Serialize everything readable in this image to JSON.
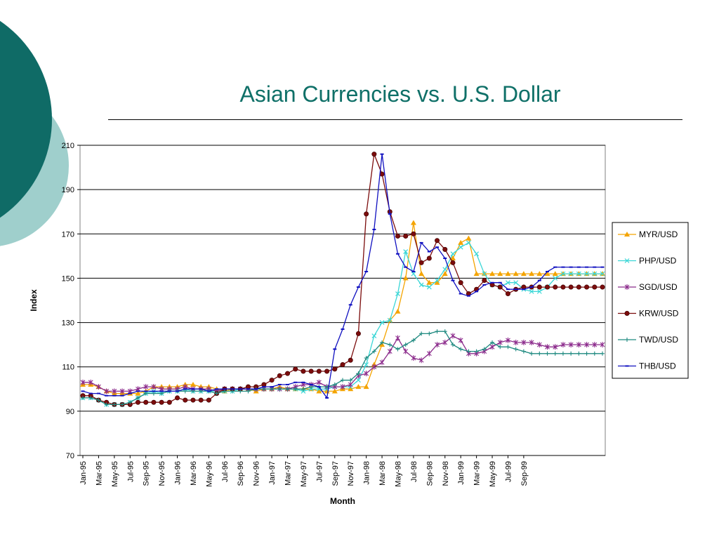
{
  "slide_title": "Asian Currencies vs. U.S. Dollar",
  "theme": {
    "title_color": "#0f7068",
    "circle_dark": "#0f6b66",
    "circle_light": "#9fcfcc"
  },
  "chart_data": {
    "type": "line",
    "ylabel": "Index",
    "xlabel": "Month",
    "ylim": [
      70,
      210
    ],
    "yticks": [
      70,
      90,
      110,
      130,
      150,
      170,
      190,
      210
    ],
    "grid": true,
    "legend_position": "right",
    "x_tick_labels": [
      "Jan-95",
      "Mar-95",
      "May-95",
      "Jul-95",
      "Sep-95",
      "Nov-95",
      "Jan-96",
      "Mar-96",
      "May-96",
      "Jul-96",
      "Sep-96",
      "Nov-96",
      "Jan-97",
      "Mar-97",
      "May-97",
      "Jul-97",
      "Sep-97",
      "Nov-97",
      "Jan-98",
      "Mar-98",
      "May-98",
      "Jul-98",
      "Sep-98",
      "Nov-98",
      "Jan-99",
      "Mar-99",
      "May-99",
      "Jul-99",
      "Sep-99"
    ],
    "series": [
      {
        "name": "MYR/USD",
        "color": "#f4a400",
        "marker": "triangle",
        "values": [
          102,
          102,
          101,
          99,
          98,
          98,
          98,
          98,
          99,
          101,
          101,
          101,
          101,
          102,
          102,
          101,
          101,
          100,
          99,
          100,
          100,
          100,
          99,
          100,
          100,
          101,
          100,
          100,
          100,
          100,
          99,
          99,
          99,
          100,
          100,
          101,
          101,
          111,
          120,
          131,
          135,
          150,
          175,
          152,
          148,
          148,
          152,
          159,
          166,
          168,
          152,
          152,
          152,
          152,
          152,
          152,
          152,
          152,
          152,
          152,
          152,
          152,
          152,
          152,
          152,
          152,
          152
        ]
      },
      {
        "name": "PHP/USD",
        "color": "#3ad6d6",
        "marker": "x",
        "values": [
          96,
          96,
          95,
          93,
          93,
          93,
          94,
          96,
          98,
          99,
          98,
          99,
          99,
          100,
          99,
          99,
          99,
          99,
          99,
          99,
          100,
          100,
          100,
          100,
          100,
          100,
          100,
          100,
          99,
          100,
          100,
          100,
          101,
          101,
          101,
          104,
          111,
          124,
          130,
          131,
          143,
          162,
          152,
          147,
          146,
          149,
          154,
          161,
          164,
          166,
          161,
          152,
          147,
          146,
          148,
          148,
          145,
          144,
          144,
          146,
          150,
          152,
          152,
          152,
          152,
          152,
          152
        ]
      },
      {
        "name": "SGD/USD",
        "color": "#8b2a8b",
        "marker": "star",
        "values": [
          103,
          103,
          101,
          99,
          99,
          99,
          99,
          100,
          101,
          101,
          100,
          100,
          100,
          101,
          100,
          100,
          100,
          99,
          100,
          100,
          100,
          100,
          100,
          100,
          100,
          100,
          100,
          101,
          102,
          102,
          103,
          101,
          101,
          101,
          102,
          106,
          107,
          110,
          112,
          117,
          123,
          117,
          114,
          113,
          116,
          120,
          121,
          124,
          122,
          116,
          116,
          117,
          119,
          121,
          122,
          121,
          121,
          121,
          120,
          119,
          119,
          120,
          120,
          120,
          120,
          120,
          120
        ]
      },
      {
        "name": "KRW/USD",
        "color": "#7b0c0c",
        "marker": "circle",
        "values": [
          97,
          97,
          95,
          94,
          93,
          93,
          93,
          94,
          94,
          94,
          94,
          94,
          96,
          95,
          95,
          95,
          95,
          98,
          100,
          100,
          100,
          101,
          101,
          102,
          104,
          106,
          107,
          109,
          108,
          108,
          108,
          108,
          109,
          111,
          113,
          125,
          179,
          206,
          197,
          180,
          169,
          169,
          170,
          157,
          159,
          167,
          163,
          157,
          148,
          143,
          145,
          149,
          147,
          146,
          143,
          145,
          146,
          146,
          146,
          146,
          146,
          146,
          146,
          146,
          146,
          146,
          146
        ]
      },
      {
        "name": "TWD/USD",
        "color": "#1f8a80",
        "marker": "plus",
        "values": [
          96,
          96,
          95,
          93,
          93,
          93,
          94,
          96,
          98,
          98,
          98,
          99,
          99,
          99,
          99,
          99,
          99,
          98,
          99,
          99,
          99,
          99,
          100,
          100,
          100,
          100,
          100,
          100,
          100,
          101,
          101,
          101,
          102,
          104,
          104,
          107,
          114,
          117,
          121,
          120,
          118,
          120,
          122,
          125,
          125,
          126,
          126,
          120,
          118,
          117,
          117,
          118,
          121,
          119,
          119,
          118,
          117,
          116,
          116,
          116,
          116,
          116,
          116,
          116,
          116,
          116,
          116
        ]
      },
      {
        "name": "THB/USD",
        "color": "#1010c0",
        "marker": "dash",
        "values": [
          99,
          98,
          98,
          97,
          97,
          97,
          98,
          99,
          99,
          99,
          99,
          99,
          99,
          100,
          100,
          100,
          99,
          100,
          100,
          100,
          100,
          100,
          100,
          101,
          101,
          102,
          102,
          103,
          103,
          102,
          101,
          96,
          118,
          127,
          138,
          146,
          153,
          172,
          206,
          179,
          161,
          155,
          153,
          166,
          162,
          164,
          159,
          149,
          143,
          142,
          144,
          147,
          148,
          148,
          145,
          145,
          145,
          146,
          149,
          153,
          155,
          155,
          155,
          155,
          155,
          155,
          155
        ]
      }
    ]
  }
}
